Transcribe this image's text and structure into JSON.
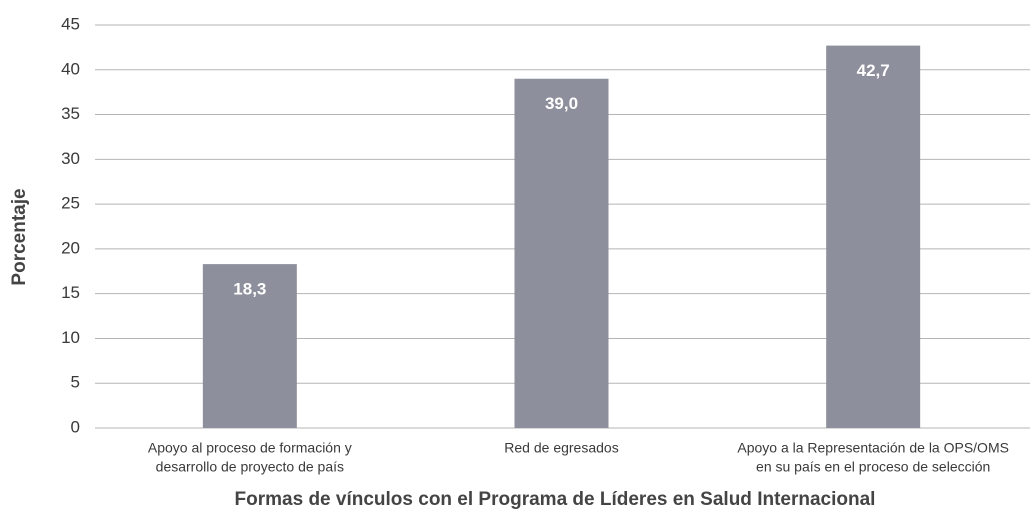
{
  "chart_data": {
    "type": "bar",
    "categories": [
      [
        "Apoyo al proceso de formación y",
        "desarrollo de proyecto de país"
      ],
      [
        "Red de egresados"
      ],
      [
        "Apoyo a la Representación de la OPS/OMS",
        "en su país en el proceso de selección"
      ]
    ],
    "values": [
      18.3,
      39.0,
      42.7
    ],
    "value_labels": [
      "18,3",
      "39,0",
      "42,7"
    ],
    "color": "#8e8f9c",
    "ylabel": "Porcentaje",
    "xlabel": "Formas de vínculos con el Programa de Líderes en Salud Internacional",
    "ylim": [
      0,
      45
    ],
    "yticks": [
      0,
      5,
      10,
      15,
      20,
      25,
      30,
      35,
      40,
      45
    ],
    "grid": true
  }
}
